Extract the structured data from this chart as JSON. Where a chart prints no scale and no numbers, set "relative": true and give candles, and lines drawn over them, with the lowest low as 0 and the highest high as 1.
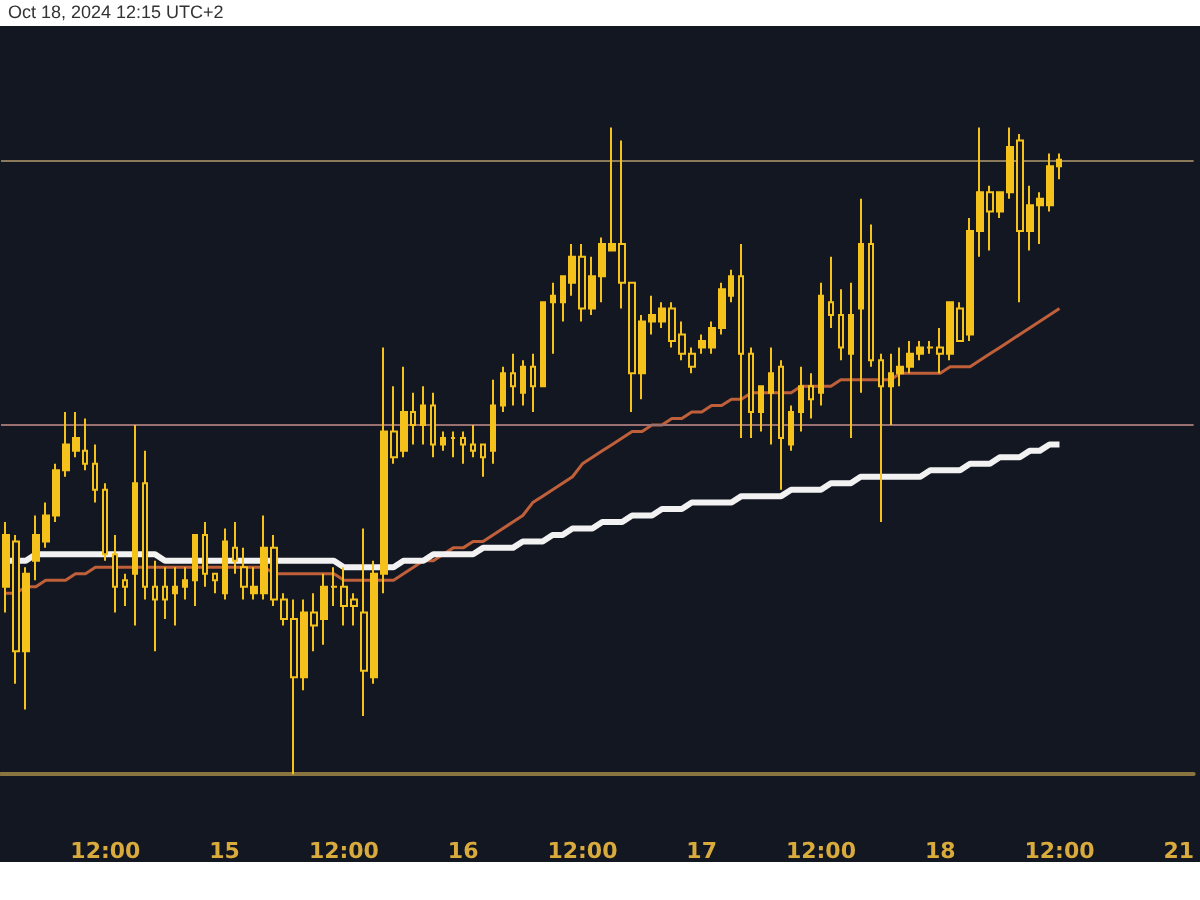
{
  "chart_data": {
    "type": "candlestick",
    "relative": true,
    "color": "#f5c21b",
    "annotations": [
      "Oct 18, 2024 12:15 UTC+2"
    ],
    "categories": [
      null,
      null,
      null,
      null,
      null,
      null,
      null,
      null,
      null,
      null,
      "12:00",
      null,
      null,
      null,
      null,
      null,
      null,
      null,
      null,
      null,
      null,
      null,
      "15",
      null,
      null,
      null,
      null,
      null,
      null,
      null,
      null,
      null,
      null,
      null,
      "12:00",
      null,
      null,
      null,
      null,
      null,
      null,
      null,
      null,
      null,
      null,
      null,
      "16",
      null,
      null,
      null,
      null,
      null,
      null,
      null,
      null,
      null,
      null,
      null,
      "12:00",
      null,
      null,
      null,
      null,
      null,
      null,
      null,
      null,
      null,
      null,
      null,
      "17",
      null,
      null,
      null,
      null,
      null,
      null,
      null,
      null,
      null,
      null,
      null,
      "12:00",
      null,
      null,
      null,
      null,
      null,
      null,
      null,
      null,
      null,
      null,
      null,
      "18",
      null,
      null,
      null,
      null,
      null,
      null,
      null,
      null,
      null,
      null,
      null,
      "12:00",
      null,
      null,
      null,
      null,
      null,
      null,
      null,
      null,
      null,
      null,
      null,
      "21",
      null
    ],
    "ohlc": [
      [
        0.29,
        0.39,
        0.25,
        0.37
      ],
      [
        0.36,
        0.37,
        0.14,
        0.19
      ],
      [
        0.19,
        0.32,
        0.1,
        0.31
      ],
      [
        0.33,
        0.4,
        0.3,
        0.37
      ],
      [
        0.36,
        0.42,
        0.35,
        0.4
      ],
      [
        0.4,
        0.48,
        0.39,
        0.47
      ],
      [
        0.47,
        0.56,
        0.46,
        0.51
      ],
      [
        0.5,
        0.56,
        0.49,
        0.52
      ],
      [
        0.5,
        0.55,
        0.47,
        0.48
      ],
      [
        0.48,
        0.51,
        0.42,
        0.44
      ],
      [
        0.44,
        0.45,
        0.33,
        0.34
      ],
      [
        0.34,
        0.37,
        0.25,
        0.29
      ],
      [
        0.3,
        0.31,
        0.26,
        0.29
      ],
      [
        0.31,
        0.54,
        0.23,
        0.45
      ],
      [
        0.45,
        0.5,
        0.27,
        0.29
      ],
      [
        0.29,
        0.33,
        0.19,
        0.27
      ],
      [
        0.29,
        0.32,
        0.24,
        0.27
      ],
      [
        0.28,
        0.32,
        0.23,
        0.29
      ],
      [
        0.29,
        0.32,
        0.27,
        0.3
      ],
      [
        0.3,
        0.37,
        0.26,
        0.37
      ],
      [
        0.37,
        0.39,
        0.29,
        0.31
      ],
      [
        0.31,
        0.31,
        0.28,
        0.3
      ],
      [
        0.28,
        0.38,
        0.27,
        0.36
      ],
      [
        0.35,
        0.39,
        0.31,
        0.33
      ],
      [
        0.32,
        0.35,
        0.27,
        0.29
      ],
      [
        0.28,
        0.32,
        0.27,
        0.29
      ],
      [
        0.28,
        0.4,
        0.27,
        0.35
      ],
      [
        0.35,
        0.37,
        0.26,
        0.27
      ],
      [
        0.27,
        0.28,
        0.23,
        0.24
      ],
      [
        0.24,
        0.27,
        0,
        0.15
      ],
      [
        0.15,
        0.27,
        0.13,
        0.25
      ],
      [
        0.25,
        0.28,
        0.19,
        0.23
      ],
      [
        0.24,
        0.31,
        0.2,
        0.29
      ],
      [
        0.29,
        0.32,
        0.26,
        0.29
      ],
      [
        0.29,
        0.32,
        0.23,
        0.26
      ],
      [
        0.27,
        0.28,
        0.23,
        0.26
      ],
      [
        0.25,
        0.38,
        0.09,
        0.16
      ],
      [
        0.15,
        0.33,
        0.14,
        0.31
      ],
      [
        0.31,
        0.66,
        0.28,
        0.53
      ],
      [
        0.53,
        0.6,
        0.48,
        0.49
      ],
      [
        0.5,
        0.63,
        0.49,
        0.56
      ],
      [
        0.56,
        0.59,
        0.51,
        0.54
      ],
      [
        0.54,
        0.6,
        0.51,
        0.57
      ],
      [
        0.57,
        0.59,
        0.49,
        0.51
      ],
      [
        0.51,
        0.53,
        0.5,
        0.52
      ],
      [
        0.52,
        0.53,
        0.49,
        0.52
      ],
      [
        0.52,
        0.53,
        0.48,
        0.51
      ],
      [
        0.51,
        0.54,
        0.49,
        0.5
      ],
      [
        0.51,
        0.51,
        0.46,
        0.49
      ],
      [
        0.5,
        0.61,
        0.48,
        0.57
      ],
      [
        0.57,
        0.63,
        0.56,
        0.62
      ],
      [
        0.62,
        0.65,
        0.57,
        0.6
      ],
      [
        0.59,
        0.64,
        0.57,
        0.63
      ],
      [
        0.63,
        0.65,
        0.56,
        0.6
      ],
      [
        0.6,
        0.73,
        0.6,
        0.73
      ],
      [
        0.73,
        0.76,
        0.65,
        0.74
      ],
      [
        0.73,
        0.77,
        0.7,
        0.77
      ],
      [
        0.76,
        0.82,
        0.74,
        0.8
      ],
      [
        0.8,
        0.82,
        0.7,
        0.72
      ],
      [
        0.72,
        0.8,
        0.71,
        0.77
      ],
      [
        0.77,
        0.83,
        0.73,
        0.82
      ],
      [
        0.81,
        1.0,
        0.81,
        0.82
      ],
      [
        0.82,
        0.98,
        0.72,
        0.76
      ],
      [
        0.76,
        0.76,
        0.56,
        0.62
      ],
      [
        0.62,
        0.71,
        0.58,
        0.7
      ],
      [
        0.7,
        0.74,
        0.68,
        0.71
      ],
      [
        0.7,
        0.73,
        0.69,
        0.72
      ],
      [
        0.72,
        0.73,
        0.66,
        0.67
      ],
      [
        0.68,
        0.7,
        0.64,
        0.65
      ],
      [
        0.65,
        0.66,
        0.62,
        0.63
      ],
      [
        0.66,
        0.68,
        0.65,
        0.67
      ],
      [
        0.66,
        0.7,
        0.65,
        0.69
      ],
      [
        0.69,
        0.76,
        0.68,
        0.75
      ],
      [
        0.74,
        0.78,
        0.73,
        0.77
      ],
      [
        0.77,
        0.82,
        0.52,
        0.65
      ],
      [
        0.65,
        0.66,
        0.52,
        0.56
      ],
      [
        0.56,
        0.6,
        0.53,
        0.6
      ],
      [
        0.59,
        0.66,
        0.51,
        0.62
      ],
      [
        0.63,
        0.64,
        0.44,
        0.52
      ],
      [
        0.51,
        0.57,
        0.5,
        0.56
      ],
      [
        0.56,
        0.63,
        0.53,
        0.6
      ],
      [
        0.6,
        0.62,
        0.55,
        0.58
      ],
      [
        0.59,
        0.76,
        0.57,
        0.74
      ],
      [
        0.73,
        0.8,
        0.69,
        0.71
      ],
      [
        0.71,
        0.75,
        0.64,
        0.66
      ],
      [
        0.65,
        0.76,
        0.52,
        0.71
      ],
      [
        0.72,
        0.89,
        0.59,
        0.82
      ],
      [
        0.82,
        0.85,
        0.63,
        0.64
      ],
      [
        0.64,
        0.65,
        0.39,
        0.6
      ],
      [
        0.6,
        0.65,
        0.54,
        0.62
      ],
      [
        0.62,
        0.66,
        0.6,
        0.63
      ],
      [
        0.63,
        0.67,
        0.62,
        0.65
      ],
      [
        0.65,
        0.67,
        0.64,
        0.66
      ],
      [
        0.66,
        0.67,
        0.65,
        0.66
      ],
      [
        0.66,
        0.69,
        0.62,
        0.65
      ],
      [
        0.65,
        0.73,
        0.64,
        0.73
      ],
      [
        0.72,
        0.73,
        0.67,
        0.67
      ],
      [
        0.68,
        0.86,
        0.67,
        0.84
      ],
      [
        0.84,
        1.0,
        0.8,
        0.9
      ],
      [
        0.9,
        0.91,
        0.81,
        0.87
      ],
      [
        0.87,
        0.9,
        0.86,
        0.9
      ],
      [
        0.9,
        1.0,
        0.89,
        0.97
      ],
      [
        0.98,
        0.99,
        0.73,
        0.84
      ],
      [
        0.84,
        0.91,
        0.81,
        0.88
      ],
      [
        0.88,
        0.9,
        0.82,
        0.89
      ],
      [
        0.88,
        0.96,
        0.87,
        0.94
      ],
      [
        0.94,
        0.96,
        0.92,
        0.95
      ],
      null,
      null,
      null,
      null,
      null,
      null,
      null,
      null,
      null,
      null,
      null,
      null,
      null
    ],
    "series": [
      {
        "type": "line",
        "color": "#c0603a",
        "values": [
          0.28,
          0.28,
          0.29,
          0.29,
          0.3,
          0.3,
          0.3,
          0.31,
          0.31,
          0.32,
          0.32,
          0.32,
          0.32,
          0.32,
          0.32,
          0.32,
          0.32,
          0.32,
          0.32,
          0.32,
          0.32,
          0.32,
          0.32,
          0.32,
          0.32,
          0.32,
          0.32,
          0.31,
          0.31,
          0.31,
          0.31,
          0.31,
          0.31,
          0.31,
          0.3,
          0.3,
          0.3,
          0.3,
          0.3,
          0.3,
          0.31,
          0.32,
          0.33,
          0.33,
          0.34,
          0.35,
          0.35,
          0.36,
          0.36,
          0.37,
          0.38,
          0.39,
          0.4,
          0.42,
          0.43,
          0.44,
          0.45,
          0.46,
          0.48,
          0.49,
          0.5,
          0.51,
          0.52,
          0.53,
          0.53,
          0.54,
          0.54,
          0.55,
          0.55,
          0.56,
          0.56,
          0.57,
          0.57,
          0.58,
          0.58,
          0.59,
          0.59,
          0.59,
          0.59,
          0.59,
          0.6,
          0.6,
          0.6,
          0.6,
          0.61,
          0.61,
          0.61,
          0.61,
          0.61,
          0.61,
          0.62,
          0.62,
          0.62,
          0.62,
          0.62,
          0.63,
          0.63,
          0.63,
          0.64,
          0.65,
          0.66,
          0.67,
          0.68,
          0.69,
          0.7,
          0.71,
          0.72,
          null,
          null,
          null,
          null,
          null,
          null,
          null,
          null,
          null,
          null,
          null,
          null,
          null
        ]
      },
      {
        "type": "line",
        "color": "#f2f2f2",
        "values": [
          0.33,
          0.33,
          0.33,
          0.34,
          0.34,
          0.34,
          0.34,
          0.34,
          0.34,
          0.34,
          0.34,
          0.34,
          0.34,
          0.34,
          0.34,
          0.34,
          0.33,
          0.33,
          0.33,
          0.33,
          0.33,
          0.33,
          0.33,
          0.33,
          0.33,
          0.33,
          0.33,
          0.33,
          0.33,
          0.33,
          0.33,
          0.33,
          0.33,
          0.33,
          0.32,
          0.32,
          0.32,
          0.32,
          0.32,
          0.32,
          0.33,
          0.33,
          0.33,
          0.34,
          0.34,
          0.34,
          0.34,
          0.34,
          0.35,
          0.35,
          0.35,
          0.35,
          0.36,
          0.36,
          0.36,
          0.37,
          0.37,
          0.38,
          0.38,
          0.38,
          0.39,
          0.39,
          0.39,
          0.4,
          0.4,
          0.4,
          0.41,
          0.41,
          0.41,
          0.42,
          0.42,
          0.42,
          0.42,
          0.42,
          0.43,
          0.43,
          0.43,
          0.43,
          0.43,
          0.44,
          0.44,
          0.44,
          0.44,
          0.45,
          0.45,
          0.45,
          0.46,
          0.46,
          0.46,
          0.46,
          0.46,
          0.46,
          0.46,
          0.47,
          0.47,
          0.47,
          0.47,
          0.48,
          0.48,
          0.48,
          0.49,
          0.49,
          0.49,
          0.5,
          0.5,
          0.51,
          0.51,
          null,
          null,
          null,
          null,
          null,
          null,
          null,
          null,
          null,
          null,
          null,
          null,
          null
        ]
      }
    ],
    "ref_lines": [
      {
        "axis": "y",
        "value": 0.95,
        "color": "#8a7a5a"
      },
      {
        "axis": "y",
        "value": 0.54,
        "color": "#9a7070"
      }
    ]
  }
}
